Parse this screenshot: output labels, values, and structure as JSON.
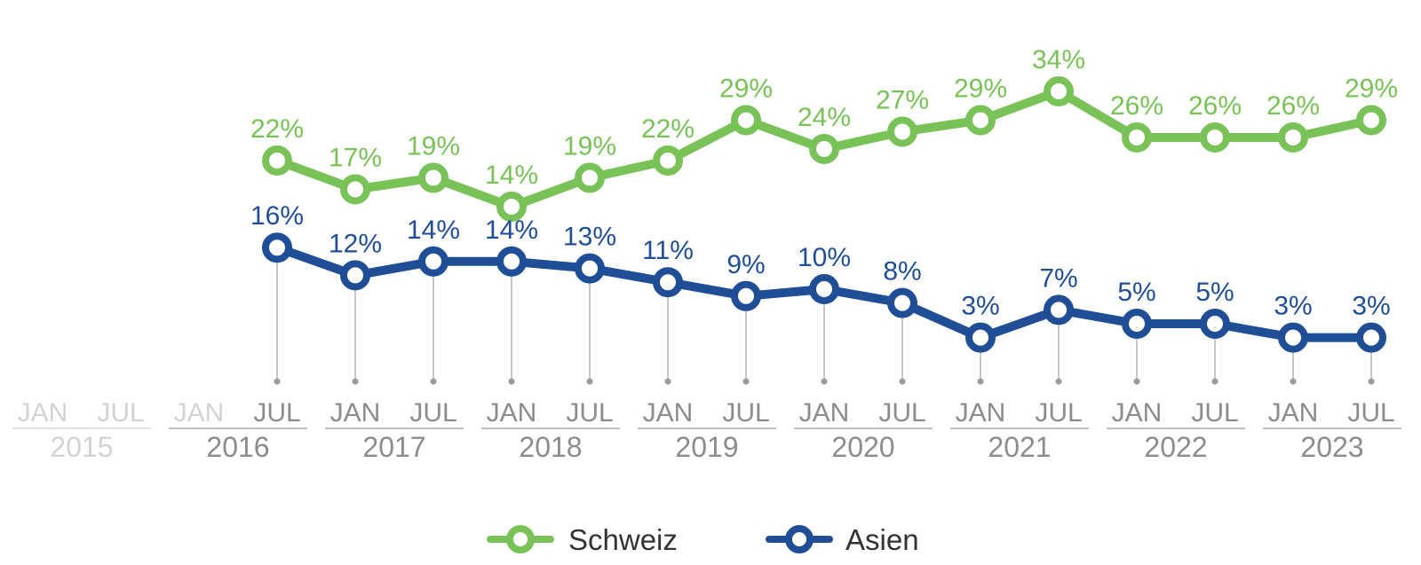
{
  "colors": {
    "schweiz": "#78c257",
    "asien": "#1f4e96",
    "axis_active": "#8c8c8c",
    "axis_inactive": "#d3d3d3",
    "stem": "#b5b5b5"
  },
  "chart_data": {
    "type": "line",
    "title": "",
    "xlabel": "",
    "ylabel": "",
    "grid": false,
    "legend_position": "bottom-center",
    "x_ticks": [
      {
        "label": "JAN",
        "year": "2015",
        "active": false
      },
      {
        "label": "JUL",
        "year": "2015",
        "active": false
      },
      {
        "label": "JAN",
        "year": "2016",
        "active": false
      },
      {
        "label": "JUL",
        "year": "2016",
        "active": true
      },
      {
        "label": "JAN",
        "year": "2017",
        "active": true
      },
      {
        "label": "JUL",
        "year": "2017",
        "active": true
      },
      {
        "label": "JAN",
        "year": "2018",
        "active": true
      },
      {
        "label": "JUL",
        "year": "2018",
        "active": true
      },
      {
        "label": "JAN",
        "year": "2019",
        "active": true
      },
      {
        "label": "JUL",
        "year": "2019",
        "active": true
      },
      {
        "label": "JAN",
        "year": "2020",
        "active": true
      },
      {
        "label": "JUL",
        "year": "2020",
        "active": true
      },
      {
        "label": "JAN",
        "year": "2021",
        "active": true
      },
      {
        "label": "JUL",
        "year": "2021",
        "active": true
      },
      {
        "label": "JAN",
        "year": "2022",
        "active": true
      },
      {
        "label": "JUL",
        "year": "2022",
        "active": true
      },
      {
        "label": "JAN",
        "year": "2023",
        "active": true
      },
      {
        "label": "JUL",
        "year": "2023",
        "active": true
      }
    ],
    "years": [
      {
        "label": "2015",
        "active": false
      },
      {
        "label": "2016",
        "active": true
      },
      {
        "label": "2017",
        "active": true
      },
      {
        "label": "2018",
        "active": true
      },
      {
        "label": "2019",
        "active": true
      },
      {
        "label": "2020",
        "active": true
      },
      {
        "label": "2021",
        "active": true
      },
      {
        "label": "2022",
        "active": true
      },
      {
        "label": "2023",
        "active": true
      }
    ],
    "x": [
      "JUL 2016",
      "JAN 2017",
      "JUL 2017",
      "JAN 2018",
      "JUL 2018",
      "JAN 2019",
      "JUL 2019",
      "JAN 2020",
      "JUL 2020",
      "JAN 2021",
      "JUL 2021",
      "JAN 2022",
      "JUL 2022",
      "JAN 2023",
      "JUL 2023"
    ],
    "series": [
      {
        "name": "Schweiz",
        "color_key": "schweiz",
        "values": [
          22,
          17,
          19,
          14,
          19,
          22,
          29,
          24,
          27,
          29,
          34,
          26,
          26,
          26,
          29
        ],
        "labels": [
          "22%",
          "17%",
          "19%",
          "14%",
          "19%",
          "22%",
          "29%",
          "24%",
          "27%",
          "29%",
          "34%",
          "26%",
          "26%",
          "26%",
          "29%"
        ]
      },
      {
        "name": "Asien",
        "color_key": "asien",
        "values": [
          16,
          12,
          14,
          14,
          13,
          11,
          9,
          10,
          8,
          3,
          7,
          5,
          5,
          3,
          3
        ],
        "labels": [
          "16%",
          "12%",
          "14%",
          "14%",
          "13%",
          "11%",
          "9%",
          "10%",
          "8%",
          "3%",
          "7%",
          "5%",
          "5%",
          "3%",
          "3%"
        ]
      }
    ],
    "legend": [
      "Schweiz",
      "Asien"
    ]
  }
}
